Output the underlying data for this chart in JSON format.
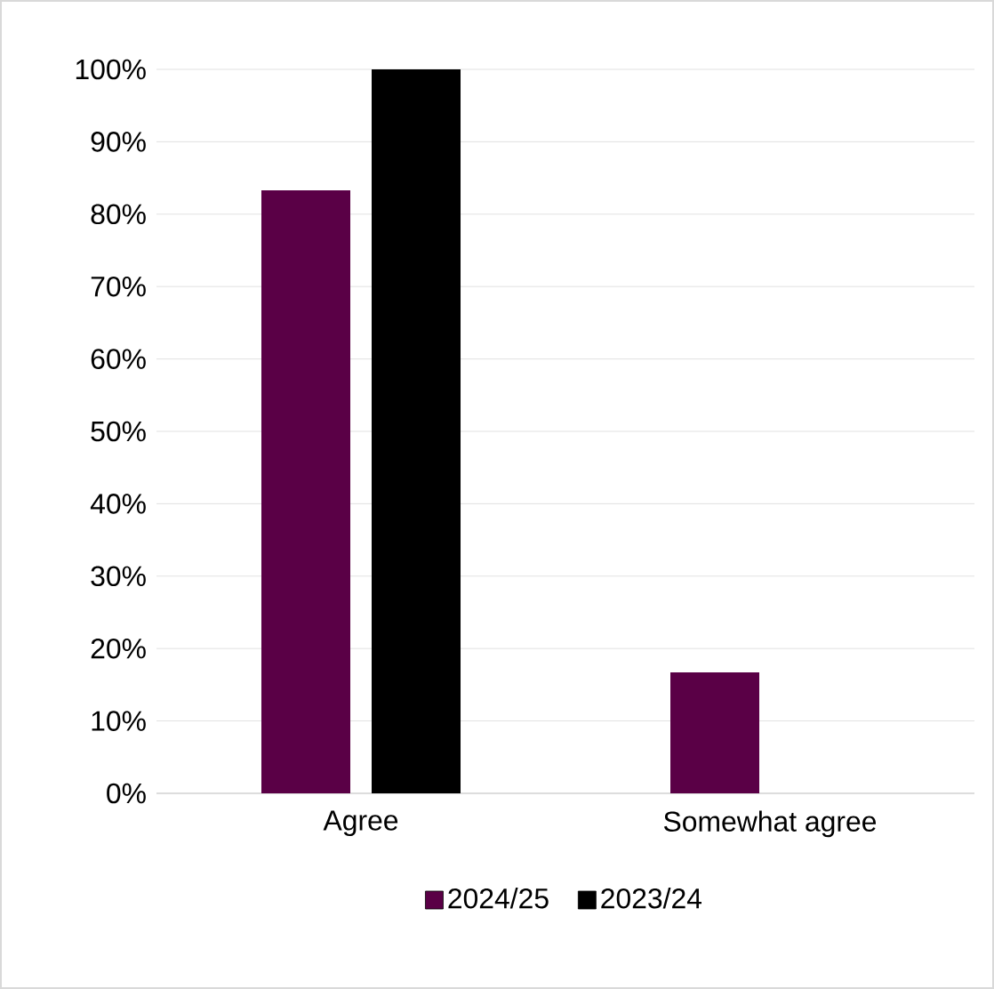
{
  "chart_data": {
    "type": "bar",
    "categories": [
      "Agree",
      "Somewhat agree"
    ],
    "series": [
      {
        "name": "2024/25",
        "color": "#5a0046",
        "values": [
          83.3,
          16.7
        ]
      },
      {
        "name": "2023/24",
        "color": "#000000",
        "values": [
          100,
          0
        ]
      }
    ],
    "ylim": [
      0,
      100
    ],
    "yticks": [
      {
        "value": 0,
        "label": "0%"
      },
      {
        "value": 10,
        "label": "10%"
      },
      {
        "value": 20,
        "label": "20%"
      },
      {
        "value": 30,
        "label": "30%"
      },
      {
        "value": 40,
        "label": "40%"
      },
      {
        "value": 50,
        "label": "50%"
      },
      {
        "value": 60,
        "label": "60%"
      },
      {
        "value": 70,
        "label": "70%"
      },
      {
        "value": 80,
        "label": "80%"
      },
      {
        "value": 90,
        "label": "90%"
      },
      {
        "value": 100,
        "label": "100%"
      }
    ],
    "grid": "y",
    "legend": "bottom"
  }
}
